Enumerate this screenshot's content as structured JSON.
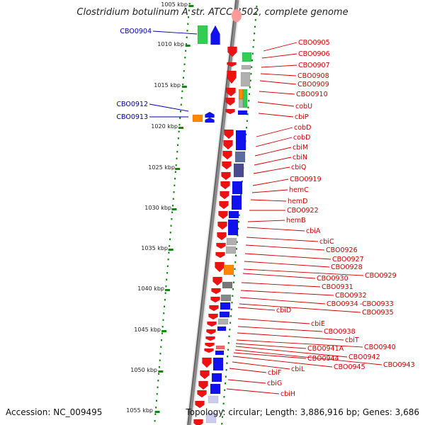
{
  "title": "Clostridium botulinum A str. ATCC 3502, complete genome",
  "accession_label": "Accession: NC_009495",
  "topology_label": "Topology: circular",
  "length_label": "Length: 3,886,916 bp",
  "genes_label": "Genes: 3,686",
  "colors": {
    "forward_label": "#0000aa",
    "reverse_label": "#cc0000",
    "gene_red": "#ee1111",
    "gene_blue": "#1111ee",
    "gene_green": "#33cc55",
    "gene_orange": "#ff8800",
    "gene_gray": "#b0b0b0",
    "gene_slate": "#5c6c9c",
    "gene_darkgray": "#777777",
    "gene_lavender": "#ccccf0",
    "ruler_green": "#118811"
  },
  "ruler": [
    "1005 kbp",
    "1010 kbp",
    "1015 kbp",
    "1020 kbp",
    "1025 kbp",
    "1030 kbp",
    "1035 kbp",
    "1040 kbp",
    "1045 kbp",
    "1050 kbp",
    "1055 kbp"
  ],
  "labels": {
    "forward": [
      "CBO0904",
      "CBO0912",
      "CBO0913"
    ],
    "reverse": [
      "CBO0905",
      "CBO0906",
      "CBO0907",
      "CBO0908",
      "CBO0909",
      "CBO0910",
      "cobU",
      "cbiP",
      "cobD",
      "cbiM",
      "cbiN",
      "cbiQ",
      "CBO0919",
      "hemC",
      "hemD",
      "CBO0922",
      "hemB",
      "cbiA",
      "cbiC",
      "CBO0926",
      "CBO0927",
      "CBO0928",
      "CBO0929",
      "CBO0930",
      "CBO0931",
      "CBO0932",
      "CBO0934",
      "CBO0933",
      "CBO0935",
      "cbiD",
      "cbiE",
      "CBO0938",
      "cbiT",
      "CBO0940",
      "CBO0941A",
      "CBO0942",
      "CBO0943",
      "CBO0944",
      "CBO0945",
      "cbiL",
      "cbiF",
      "cbiG",
      "cbiH"
    ]
  }
}
